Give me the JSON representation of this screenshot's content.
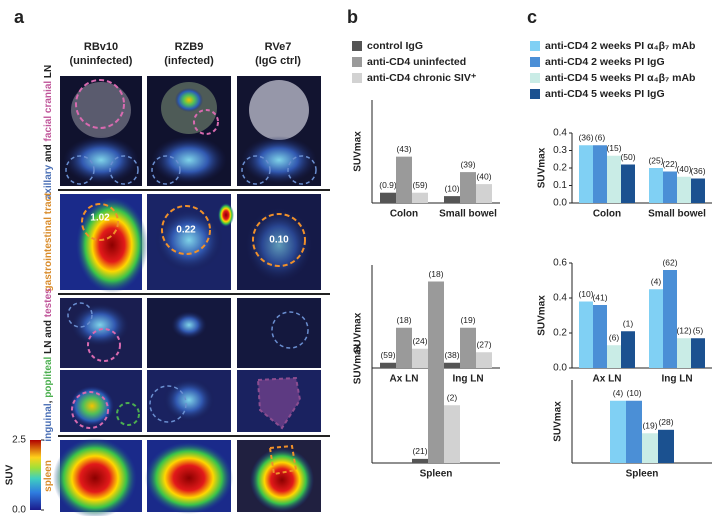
{
  "panel_labels": [
    "a",
    "b",
    "c"
  ],
  "panel_a": {
    "columns": [
      [
        "RBv10",
        "(uninfected)"
      ],
      [
        "RZB9",
        "(infected)"
      ],
      [
        "RVe7",
        "(IgG ctrl)"
      ]
    ],
    "row_labels": [
      [
        {
          "text": "axillary",
          "color": "#4a6fb5"
        },
        {
          "text": " and ",
          "color": "#222222"
        },
        {
          "text": "facial cranial",
          "color": "#c0569a"
        },
        {
          "text": " LN",
          "color": "#222222"
        }
      ],
      [
        {
          "text": "gastrointestinal tract",
          "color": "#d98c2b"
        }
      ],
      [
        {
          "text": "inguinal",
          "color": "#4a6fb5"
        },
        {
          "text": ", ",
          "color": "#222222"
        },
        {
          "text": "popliteal",
          "color": "#4caf50"
        },
        {
          "text": " LN and ",
          "color": "#222222"
        },
        {
          "text": "testes",
          "color": "#c0569a"
        }
      ],
      [
        {
          "text": "spleen",
          "color": "#d98c2b"
        }
      ]
    ],
    "annotations": [
      "1.02",
      "0.22",
      "0.10"
    ],
    "colorbar": {
      "label": "SUV",
      "lim": [
        0,
        2.5
      ],
      "ticks": [
        {
          "value": 0,
          "label": "0.0"
        },
        2.5
      ]
    }
  },
  "chart_data": [
    {
      "type": "bar",
      "ylabel": "SUVmax",
      "categories": [
        "Colon",
        "Small bowel"
      ],
      "ylim": [
        0,
        0.6
      ],
      "series": [
        {
          "name": "control IgG",
          "color": "#555555",
          "values": [
            0.06,
            0.04
          ],
          "bar_labels": [
            "(0.9)",
            "(10)"
          ]
        },
        {
          "name": "anti-CD4 uninfected",
          "color": "#9a9a9a",
          "values": [
            0.27,
            0.18
          ],
          "bar_labels": [
            "(43)",
            "(39)"
          ]
        },
        {
          "name": "anti-CD4 chronic SIV⁺",
          "color": "#d2d2d2",
          "values": [
            0.06,
            0.11
          ],
          "bar_labels": [
            "(59)",
            "(40)"
          ]
        }
      ]
    },
    {
      "type": "bar",
      "ylabel": "SUVmax",
      "categories": [
        "Ax LN",
        "Ing LN"
      ],
      "ylim": [
        0,
        0.4
      ],
      "series": [
        {
          "color": "#555555",
          "values": [
            0.03,
            0.03
          ],
          "bar_labels": [
            "(59)",
            "(38)"
          ]
        },
        {
          "color": "#9a9a9a",
          "values": [
            0.23,
            0.23
          ],
          "bar_labels": [
            "(18)",
            "(19)"
          ]
        },
        {
          "color": "#d2d2d2",
          "values": [
            0.11,
            0.09
          ],
          "bar_labels": [
            "(24)",
            "(27)"
          ]
        }
      ]
    },
    {
      "type": "bar",
      "ylabel": "SUVmax",
      "categories": [
        "Spleen"
      ],
      "ylim": [
        0,
        2.4
      ],
      "series": [
        {
          "color": "#555555",
          "values": [
            0.05
          ],
          "bar_labels": [
            "(21)"
          ]
        },
        {
          "color": "#9a9a9a",
          "values": [
            2.2
          ],
          "bar_labels": [
            "(18)"
          ]
        },
        {
          "color": "#d2d2d2",
          "values": [
            0.7
          ],
          "bar_labels": [
            "(2)"
          ]
        }
      ]
    },
    {
      "type": "bar",
      "ylabel": "SUVmax",
      "categories": [
        "Colon",
        "Small bowel"
      ],
      "ylim": [
        0,
        0.4
      ],
      "yticks": [
        {
          "value": 0,
          "label": "0.0"
        },
        0.1,
        0.2,
        0.3,
        0.4
      ],
      "series": [
        {
          "name": "anti-CD4 2 weeks PI α₄β₇ mAb",
          "color": "#80d0f4",
          "values": [
            0.33,
            0.2
          ],
          "bar_labels": [
            "(36)",
            "(25)"
          ]
        },
        {
          "name": "anti-CD4 2 weeks PI IgG",
          "color": "#4b8fd6",
          "values": [
            0.33,
            0.18
          ],
          "bar_labels": [
            "(6)",
            "(22)"
          ]
        },
        {
          "name": "anti-CD4 5 weeks PI α₄β₇ mAb",
          "color": "#c9ece6",
          "values": [
            0.27,
            0.15
          ],
          "bar_labels": [
            "(15)",
            "(40)"
          ]
        },
        {
          "name": "anti-CD4 5 weeks PI IgG",
          "color": "#1b5190",
          "values": [
            0.22,
            0.14
          ],
          "bar_labels": [
            "(50)",
            "(36)"
          ]
        }
      ]
    },
    {
      "type": "bar",
      "ylabel": "SUVmax",
      "categories": [
        "Ax LN",
        "Ing LN"
      ],
      "ylim": [
        0,
        0.6
      ],
      "yticks": [
        {
          "value": 0,
          "label": "0.0"
        },
        0.2,
        0.4,
        0.6
      ],
      "series": [
        {
          "color": "#80d0f4",
          "values": [
            0.38,
            0.45
          ],
          "bar_labels": [
            "(10)",
            "(4)"
          ]
        },
        {
          "color": "#4b8fd6",
          "values": [
            0.36,
            0.56
          ],
          "bar_labels": [
            "(41)",
            "(62)"
          ]
        },
        {
          "color": "#c9ece6",
          "values": [
            0.13,
            0.17
          ],
          "bar_labels": [
            "(6)",
            "(12)"
          ]
        },
        {
          "color": "#1b5190",
          "values": [
            0.21,
            0.17
          ],
          "bar_labels": [
            "(1)",
            "(5)"
          ]
        }
      ]
    },
    {
      "type": "bar",
      "ylabel": "SUVmax",
      "categories": [
        "Spleen"
      ],
      "ylim": [
        0,
        1.2
      ],
      "series": [
        {
          "color": "#80d0f4",
          "values": [
            0.9
          ],
          "bar_labels": [
            "(4)"
          ]
        },
        {
          "color": "#4b8fd6",
          "values": [
            0.9
          ],
          "bar_labels": [
            "(10)"
          ]
        },
        {
          "color": "#c9ece6",
          "values": [
            0.43
          ],
          "bar_labels": [
            "(19)"
          ]
        },
        {
          "color": "#1b5190",
          "values": [
            0.48
          ],
          "bar_labels": [
            "(28)"
          ]
        }
      ]
    }
  ]
}
